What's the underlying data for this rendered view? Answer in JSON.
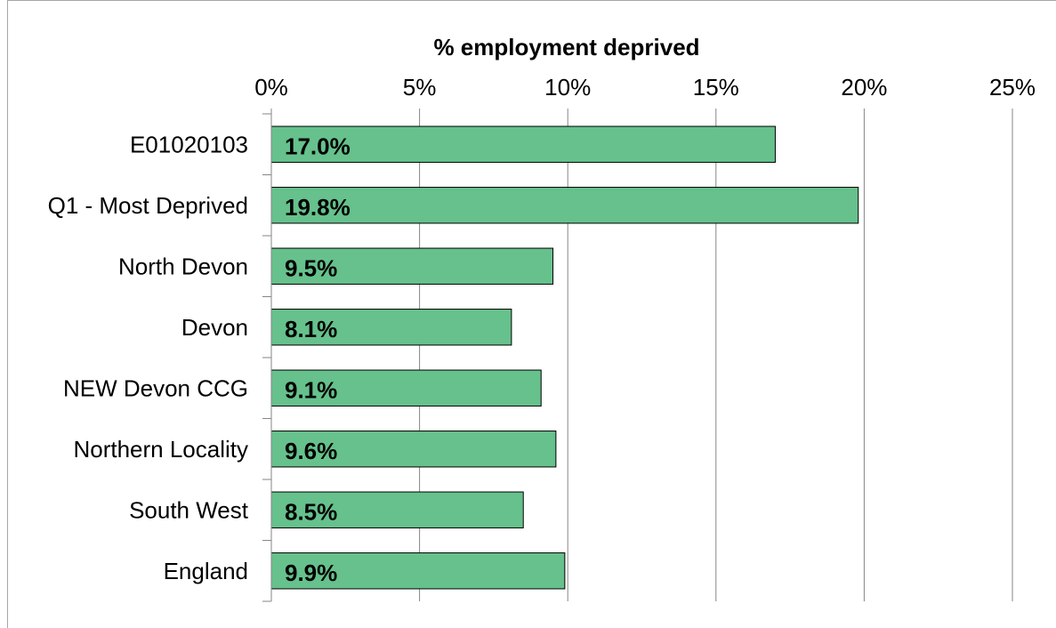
{
  "chart_data": {
    "type": "bar",
    "orientation": "horizontal",
    "title": "% employment deprived",
    "categories": [
      "E01020103",
      "Q1 - Most Deprived",
      "North Devon",
      "Devon",
      "NEW Devon CCG",
      "Northern Locality",
      "South West",
      "England"
    ],
    "values": [
      17.0,
      19.8,
      9.5,
      8.1,
      9.1,
      9.6,
      8.5,
      9.9
    ],
    "data_labels": [
      "17.0%",
      "19.8%",
      "9.5%",
      "8.1%",
      "9.1%",
      "9.6%",
      "8.5%",
      "9.9%"
    ],
    "x_ticks": [
      "0%",
      "5%",
      "10%",
      "15%",
      "20%",
      "25%"
    ],
    "xlim": [
      0,
      25
    ],
    "x_axis_position": "top",
    "grid": true,
    "bar_color": "#66c18c"
  }
}
